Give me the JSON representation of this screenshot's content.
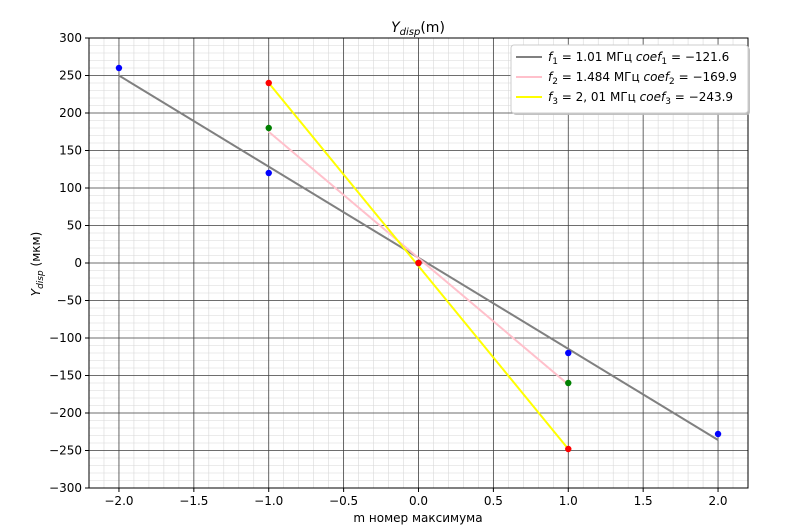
{
  "chart_data": {
    "type": "line",
    "title": "Y_disp(m)",
    "xlabel": "m номер максимума",
    "ylabel": "Y_disp (мкм)",
    "xlim": [
      -2.2,
      2.2
    ],
    "ylim": [
      -300,
      300
    ],
    "x_ticks": [
      "−2.0",
      "−1.5",
      "−1.0",
      "−0.5",
      "0.0",
      "0.5",
      "1.0",
      "1.5",
      "2.0"
    ],
    "x_tick_values": [
      -2.0,
      -1.5,
      -1.0,
      -0.5,
      0.0,
      0.5,
      1.0,
      1.5,
      2.0
    ],
    "y_ticks": [
      "300",
      "250",
      "200",
      "150",
      "100",
      "50",
      "0",
      "−50",
      "−100",
      "−150",
      "−200",
      "−250",
      "−300"
    ],
    "y_tick_values": [
      300,
      250,
      200,
      150,
      100,
      50,
      0,
      -50,
      -100,
      -150,
      -200,
      -250,
      -300
    ],
    "grid": true,
    "legend_position": "top-right",
    "series": [
      {
        "name": "f1 = 1.01 МГц   coef1 = −121.6",
        "legend": {
          "f_sub": "1",
          "f_val": "= 1.01 МГц",
          "coef_sub": "1",
          "coef_val": "= −121.6"
        },
        "color": "#808080",
        "line_x": [
          -2,
          2
        ],
        "line_y": [
          250,
          -236
        ],
        "points": [
          {
            "x": -2,
            "y": 260
          },
          {
            "x": -1,
            "y": 120
          },
          {
            "x": 0,
            "y": 0
          },
          {
            "x": 1,
            "y": -120
          },
          {
            "x": 2,
            "y": -228
          }
        ],
        "point_color": "#0000ff"
      },
      {
        "name": "f2 = 1.484 МГц   coef2 = −169.9",
        "legend": {
          "f_sub": "2",
          "f_val": "= 1.484 МГц",
          "coef_sub": "2",
          "coef_val": "= −169.9"
        },
        "color": "#ffc0cb",
        "line_x": [
          -1,
          1
        ],
        "line_y": [
          175,
          -162
        ],
        "points": [
          {
            "x": -1,
            "y": 180
          },
          {
            "x": 0,
            "y": 0
          },
          {
            "x": 1,
            "y": -160
          }
        ],
        "point_color": "#008000"
      },
      {
        "name": "f3 = 2, 01 МГц   coef3 = −243.9",
        "legend": {
          "f_sub": "3",
          "f_val": "= 2, 01 МГц",
          "coef_sub": "3",
          "coef_val": "= −243.9"
        },
        "color": "#ffff00",
        "line_x": [
          -1,
          1
        ],
        "line_y": [
          240,
          -248
        ],
        "points": [
          {
            "x": -1,
            "y": 240
          },
          {
            "x": 0,
            "y": 0
          },
          {
            "x": 1,
            "y": -248
          }
        ],
        "point_color": "#ff0000"
      }
    ]
  },
  "labels": {
    "title_main": "Y",
    "title_sub": "disp",
    "title_tail": "(m)",
    "ylabel_main": "Y",
    "ylabel_sub": "disp",
    "ylabel_tail": " (мкм)",
    "xlabel": "m номер максимума",
    "legend_f": "f",
    "legend_coef": "coef"
  }
}
